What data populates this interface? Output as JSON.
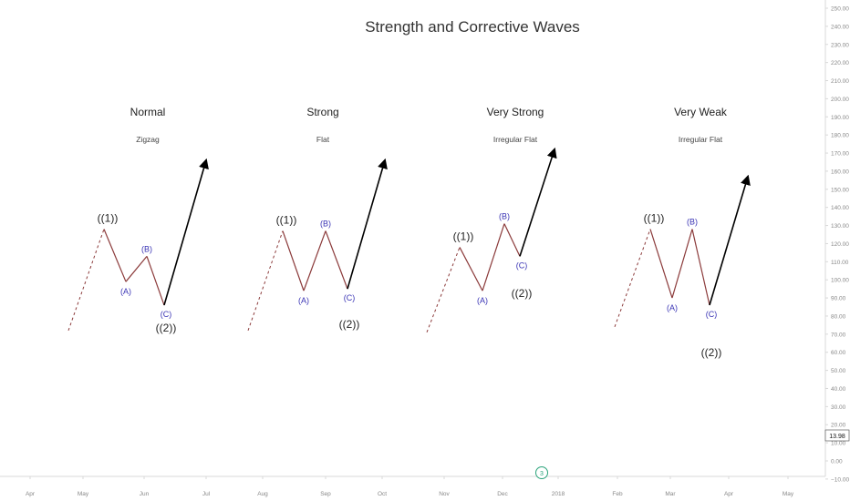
{
  "chart": {
    "title": "Strength and Corrective Waves"
  },
  "colors": {
    "background": "#ffffff",
    "wave": "#8b3a3a",
    "impulse_arrow": "#000000",
    "label_major": "#222222",
    "label_minor": "#3b35b5",
    "axis_text": "#888888",
    "axis_line": "#d8d8d8",
    "marker": "#2aa37a"
  },
  "chart_data": {
    "type": "line",
    "title": "Strength and Corrective Waves",
    "xlabel": "",
    "ylabel": "",
    "ylim": [
      -10,
      250
    ],
    "x_ticks": [
      "Apr",
      "May",
      "Jun",
      "Jul",
      "Aug",
      "Sep",
      "Oct",
      "Nov",
      "Dec",
      "2018",
      "Feb",
      "Mar",
      "Apr",
      "May"
    ],
    "y_ticks": [
      "250.00",
      "240.00",
      "230.00",
      "220.00",
      "210.00",
      "200.00",
      "190.00",
      "180.00",
      "170.00",
      "160.00",
      "150.00",
      "140.00",
      "130.00",
      "120.00",
      "110.00",
      "100.00",
      "90.00",
      "80.00",
      "70.00",
      "60.00",
      "50.00",
      "40.00",
      "30.00",
      "20.00",
      "10.00",
      "0.00",
      "−10.00"
    ],
    "last_value_label": "13.98",
    "event_marker": "3",
    "panels": [
      {
        "name": "Normal",
        "subtitle": "Zigzag",
        "labels": {
          "wave1": "((1))",
          "a": "(A)",
          "b": "(B)",
          "c": "(C)",
          "wave2": "((2))"
        },
        "dashed_start": [
          75,
          72
        ],
        "points": [
          [
            114,
            128
          ],
          [
            138,
            99
          ],
          [
            161,
            113
          ],
          [
            180,
            86
          ]
        ],
        "arrow_end": [
          226,
          166
        ]
      },
      {
        "name": "Strong",
        "subtitle": "Flat",
        "labels": {
          "wave1": "((1))",
          "a": "(A)",
          "b": "(B)",
          "c": "(C)",
          "wave2": "((2))"
        },
        "dashed_start": [
          272,
          72
        ],
        "points": [
          [
            310,
            127
          ],
          [
            333,
            94
          ],
          [
            357,
            127
          ],
          [
            381,
            95
          ]
        ],
        "arrow_end": [
          422,
          166
        ]
      },
      {
        "name": "Very Strong",
        "subtitle": "Irregular Flat",
        "labels": {
          "wave1": "((1))",
          "a": "(A)",
          "b": "(B)",
          "c": "(C)",
          "wave2": "((2))"
        },
        "dashed_start": [
          468,
          71
        ],
        "points": [
          [
            504,
            118
          ],
          [
            529,
            94
          ],
          [
            553,
            131
          ],
          [
            570,
            113
          ]
        ],
        "arrow_end": [
          608,
          172
        ]
      },
      {
        "name": "Very Weak",
        "subtitle": "Irregular Flat",
        "labels": {
          "wave1": "((1))",
          "a": "(A)",
          "b": "(B)",
          "c": "(C)",
          "wave2": "((2))"
        },
        "dashed_start": [
          674,
          74
        ],
        "points": [
          [
            713,
            128
          ],
          [
            737,
            90
          ],
          [
            759,
            128
          ],
          [
            778,
            86
          ]
        ],
        "arrow_end": [
          820,
          157
        ]
      }
    ],
    "grid": false,
    "legend": "none"
  }
}
